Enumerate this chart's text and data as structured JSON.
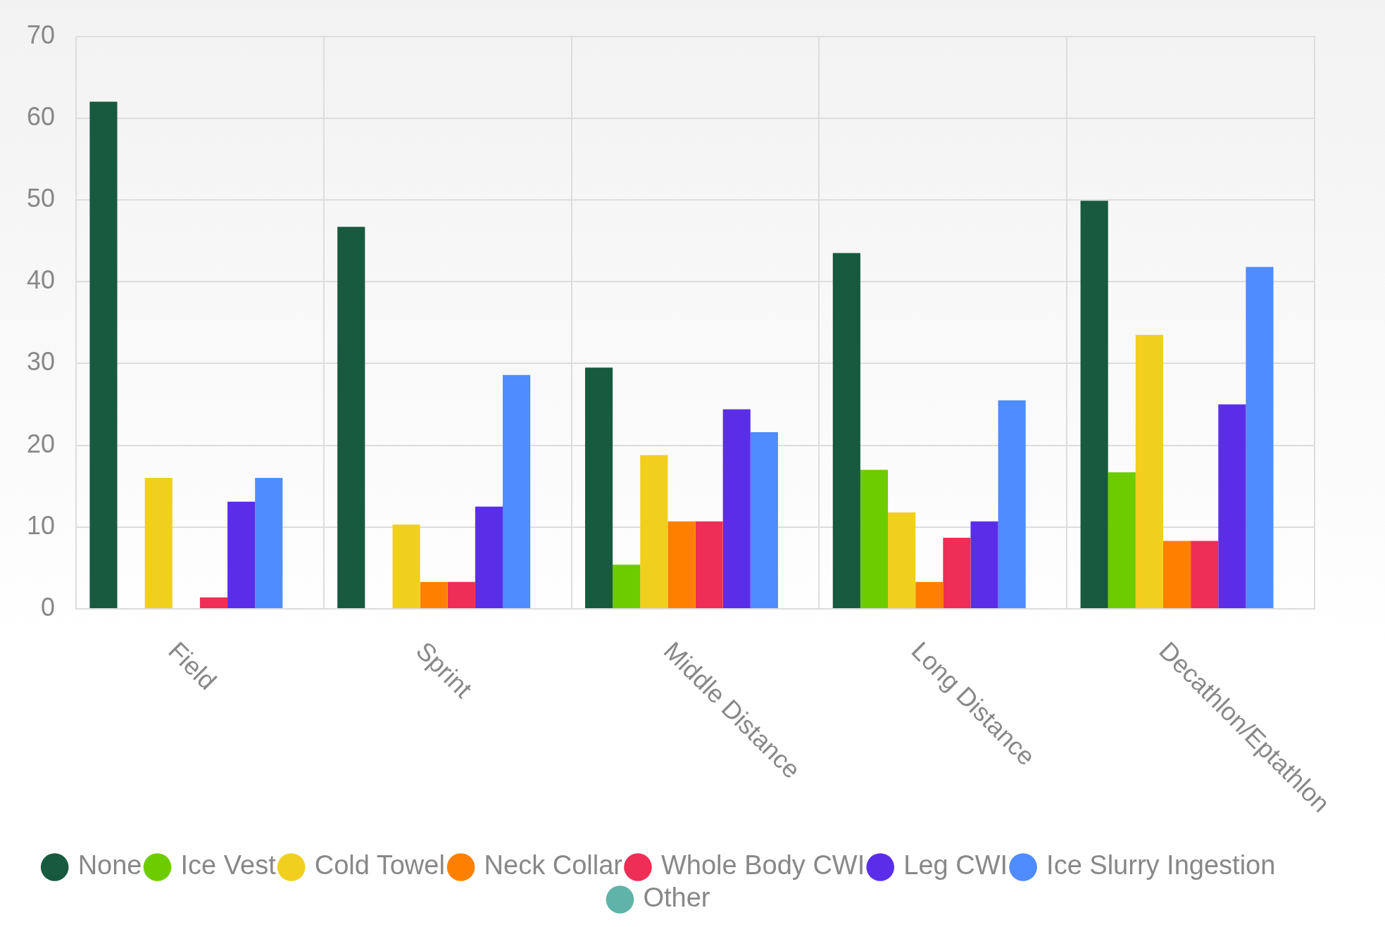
{
  "chart_data": {
    "type": "bar",
    "categories": [
      "Field",
      "Sprint",
      "Middle Distance",
      "Long Distance",
      "Decathlon/Eptathlon"
    ],
    "series": [
      {
        "name": "None",
        "color": "#175a3f",
        "values": [
          62,
          46.7,
          29.5,
          43.5,
          49.9
        ]
      },
      {
        "name": "Ice Vest",
        "color": "#6dcc00",
        "values": [
          0,
          0,
          5.4,
          17,
          16.7
        ]
      },
      {
        "name": "Cold Towel",
        "color": "#f0cf1f",
        "values": [
          16,
          10.3,
          18.8,
          11.8,
          33.5
        ]
      },
      {
        "name": "Neck Collar",
        "color": "#ff8000",
        "values": [
          0,
          3.3,
          10.7,
          3.3,
          8.3
        ]
      },
      {
        "name": "Whole Body CWI",
        "color": "#ee2e55",
        "values": [
          1.4,
          3.3,
          10.7,
          8.7,
          8.3
        ]
      },
      {
        "name": "Leg CWI",
        "color": "#5a2ee8",
        "values": [
          13.1,
          12.5,
          24.4,
          10.7,
          25
        ]
      },
      {
        "name": "Ice Slurry Ingestion",
        "color": "#4f8cff",
        "values": [
          16,
          28.6,
          21.6,
          25.5,
          41.8
        ]
      },
      {
        "name": "Other",
        "color": "#5fb3a8",
        "values": [
          0,
          0,
          0,
          0,
          0
        ]
      }
    ],
    "ylim": [
      0,
      70
    ],
    "yticks": [
      0,
      10,
      20,
      30,
      40,
      50,
      60,
      70
    ],
    "grid": true,
    "legend": "bottom"
  }
}
